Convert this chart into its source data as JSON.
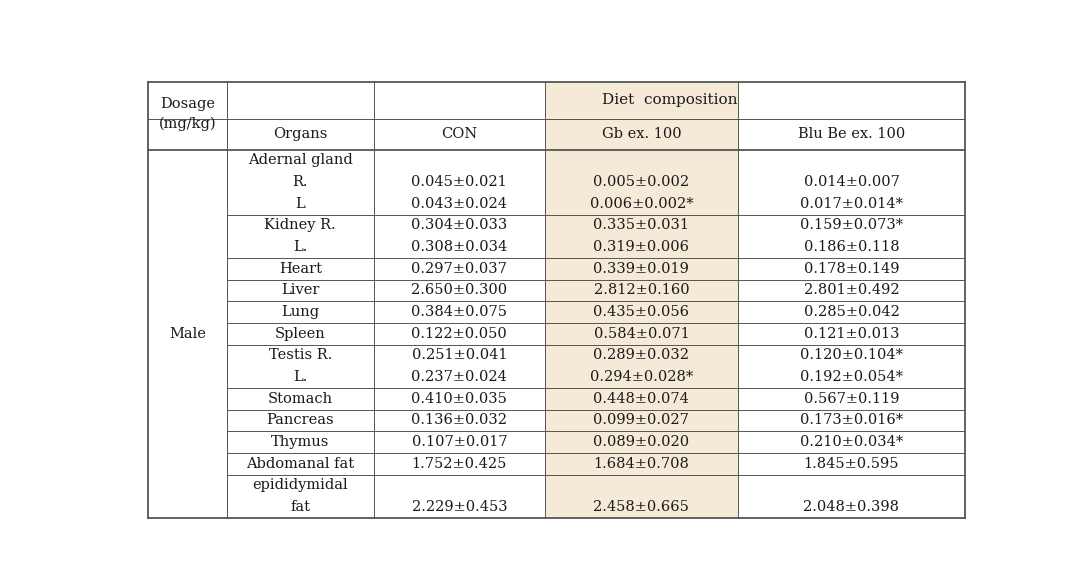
{
  "col_headers": [
    "CON",
    "Gb ex. 100",
    "Blu Be ex. 100"
  ],
  "dosage_label_line1": "Dosage",
  "dosage_label_line2": "(mg/kg)",
  "organs_label": "Organs",
  "diet_label": "Diet  composition",
  "gender_label": "Male",
  "gb_bg_color": "#f5ead8",
  "rows": [
    {
      "organ": "Adernal gland",
      "values": [
        "",
        "",
        ""
      ],
      "divider_below": false
    },
    {
      "organ": "R.",
      "values": [
        "0.045±0.021",
        "0.005±0.002",
        "0.014±0.007"
      ],
      "divider_below": false
    },
    {
      "organ": "L",
      "values": [
        "0.043±0.024",
        "0.006±0.002*",
        "0.017±0.014*"
      ],
      "divider_below": true
    },
    {
      "organ": "Kidney R.",
      "values": [
        "0.304±0.033",
        "0.335±0.031",
        "0.159±0.073*"
      ],
      "divider_below": false
    },
    {
      "organ": "L.",
      "values": [
        "0.308±0.034",
        "0.319±0.006",
        "0.186±0.118"
      ],
      "divider_below": true
    },
    {
      "organ": "Heart",
      "values": [
        "0.297±0.037",
        "0.339±0.019",
        "0.178±0.149"
      ],
      "divider_below": true
    },
    {
      "organ": "Liver",
      "values": [
        "2.650±0.300",
        "2.812±0.160",
        "2.801±0.492"
      ],
      "divider_below": true
    },
    {
      "organ": "Lung",
      "values": [
        "0.384±0.075",
        "0.435±0.056",
        "0.285±0.042"
      ],
      "divider_below": true
    },
    {
      "organ": "Spleen",
      "values": [
        "0.122±0.050",
        "0.584±0.071",
        "0.121±0.013"
      ],
      "divider_below": true
    },
    {
      "organ": "Testis R.",
      "values": [
        "0.251±0.041",
        "0.289±0.032",
        "0.120±0.104*"
      ],
      "divider_below": false
    },
    {
      "organ": "L.",
      "values": [
        "0.237±0.024",
        "0.294±0.028*",
        "0.192±0.054*"
      ],
      "divider_below": true
    },
    {
      "organ": "Stomach",
      "values": [
        "0.410±0.035",
        "0.448±0.074",
        "0.567±0.119"
      ],
      "divider_below": true
    },
    {
      "organ": "Pancreas",
      "values": [
        "0.136±0.032",
        "0.099±0.027",
        "0.173±0.016*"
      ],
      "divider_below": true
    },
    {
      "organ": "Thymus",
      "values": [
        "0.107±0.017",
        "0.089±0.020",
        "0.210±0.034*"
      ],
      "divider_below": true
    },
    {
      "organ": "Abdomanal fat",
      "values": [
        "1.752±0.425",
        "1.684±0.708",
        "1.845±0.595"
      ],
      "divider_below": true
    },
    {
      "organ": "epididymidal",
      "values": [
        "",
        "",
        ""
      ],
      "divider_below": false
    },
    {
      "organ": "fat",
      "values": [
        "2.229±0.453",
        "2.458±0.665",
        "2.048±0.398"
      ],
      "divider_below": false
    }
  ],
  "font_size": 10.5,
  "bg_color": "#ffffff",
  "text_color": "#1a1a1a",
  "line_color": "#555555",
  "thin_lw": 0.7,
  "thick_lw": 1.3
}
